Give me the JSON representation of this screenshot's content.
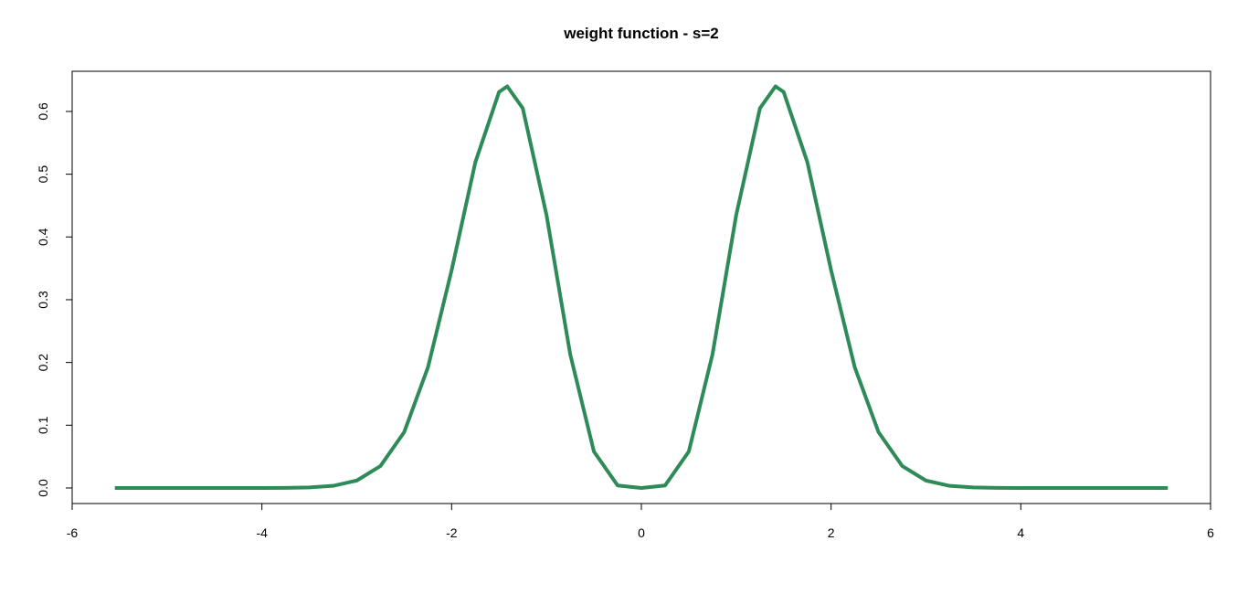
{
  "chart_data": {
    "type": "line",
    "title": "weight function - s=2",
    "x": [
      -5.55,
      -5,
      -4.5,
      -4,
      -3.75,
      -3.5,
      -3.25,
      -3,
      -2.75,
      -2.5,
      -2.25,
      -2,
      -1.75,
      -1.5,
      -1.414,
      -1.25,
      -1,
      -0.75,
      -0.5,
      -0.25,
      0,
      0.25,
      0.5,
      0.75,
      1,
      1.25,
      1.414,
      1.5,
      1.75,
      2,
      2.25,
      2.5,
      2.75,
      3,
      3.25,
      3.5,
      3.75,
      4,
      4.5,
      5,
      5.55
    ],
    "values": [
      0,
      0,
      0,
      0,
      0.0001,
      0.0008,
      0.0034,
      0.0118,
      0.035,
      0.089,
      0.192,
      0.347,
      0.519,
      0.631,
      0.64,
      0.605,
      0.435,
      0.213,
      0.058,
      0.004,
      0,
      0.004,
      0.058,
      0.213,
      0.435,
      0.605,
      0.64,
      0.631,
      0.519,
      0.347,
      0.192,
      0.089,
      0.035,
      0.0118,
      0.0034,
      0.0008,
      0.0001,
      0,
      0,
      0,
      0
    ],
    "color": "#2e8b57",
    "xlim": [
      -6,
      6
    ],
    "xticks": [
      -6,
      -4,
      -2,
      0,
      2,
      4,
      6
    ],
    "ylim": [
      -0.0248,
      0.664
    ],
    "yticks": [
      {
        "value": 0,
        "label": "0.0"
      },
      0.1,
      0.2,
      0.3,
      0.4,
      0.5,
      0.6
    ]
  }
}
